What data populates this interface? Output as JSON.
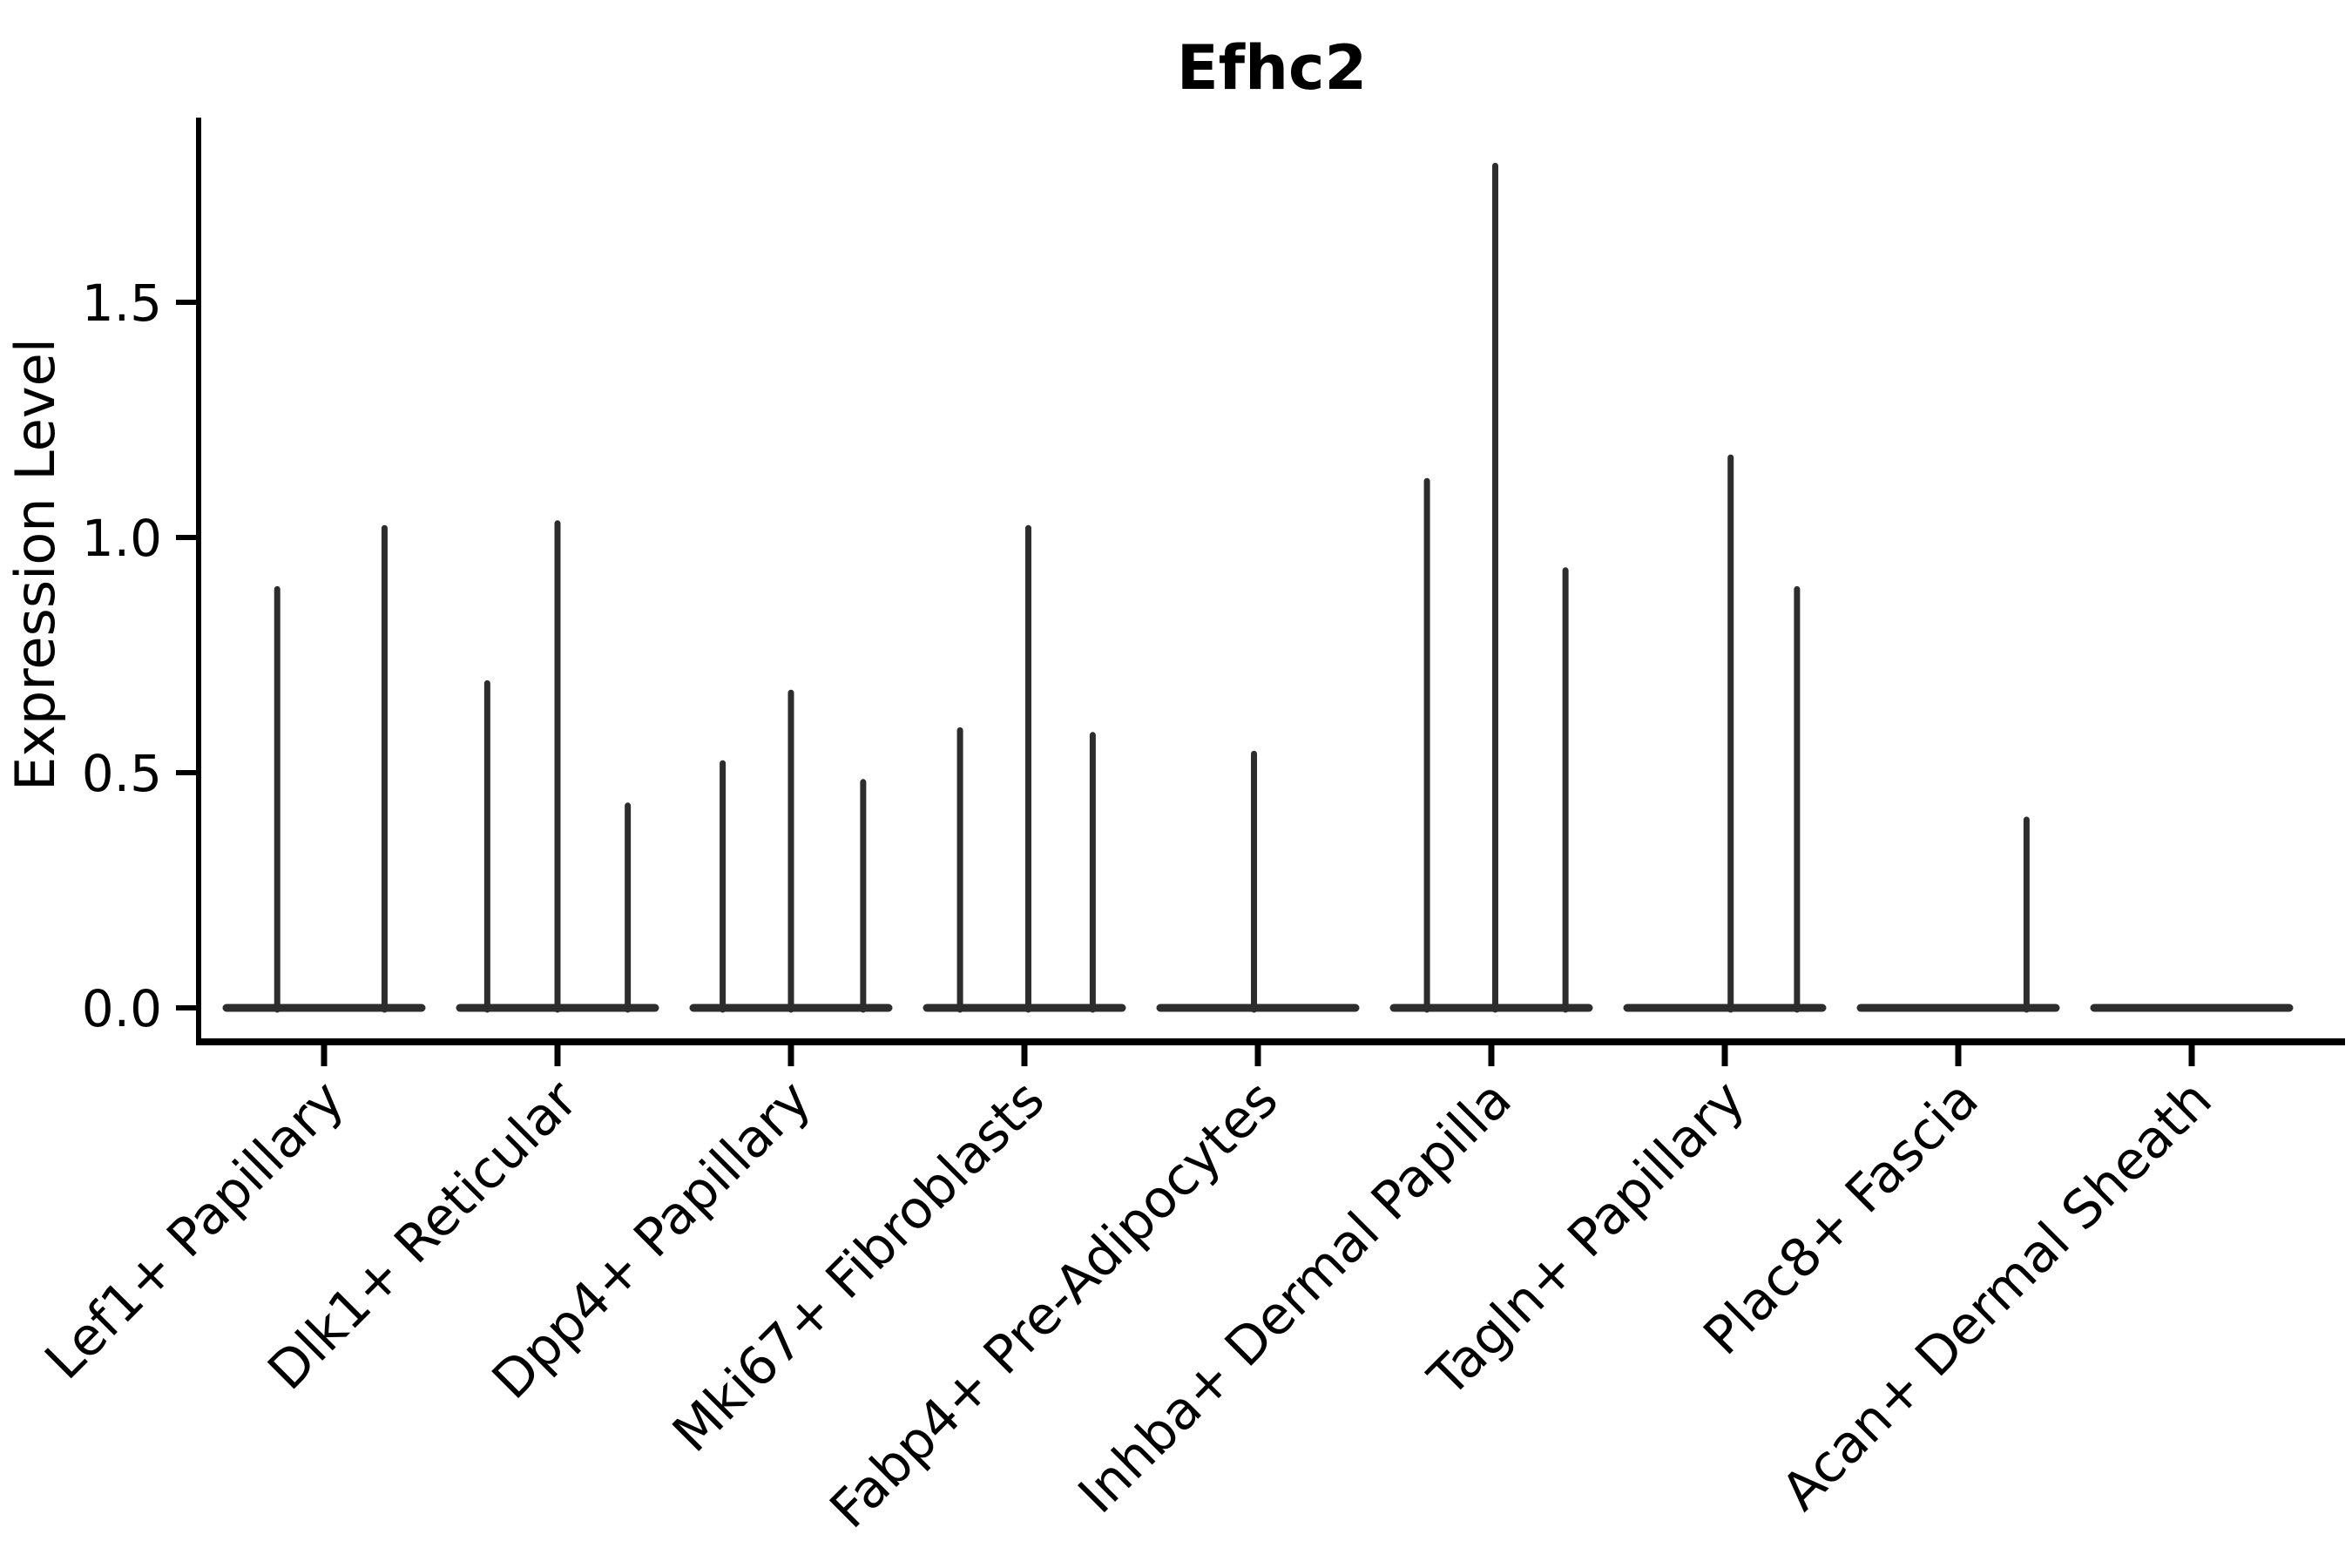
{
  "chart_data": {
    "type": "violin",
    "title": "Efhc2",
    "xlabel": "",
    "ylabel": "Expression Level",
    "categories": [
      "Lef1+ Papillary",
      "Dlk1+ Reticular",
      "Dpp4+ Papillary",
      "Mki67+ Fibroblasts",
      "Fabp4+ Pre-Adipocytes",
      "Inhba+ Dermal Papilla",
      "Tagln+ Papillary",
      "Plac8+ Fascia",
      "Acan+ Dermal Sheath"
    ],
    "yticks": [
      "0.0",
      "0.5",
      "1.0",
      "1.5"
    ],
    "ytick_values": [
      0.0,
      0.5,
      1.0,
      1.5
    ],
    "ylim": [
      -0.08,
      1.9
    ],
    "grid": "off",
    "legend": "none",
    "series": [
      {
        "name": "Lef1+ Papillary",
        "spikes": [
          {
            "x_frac": 0.26,
            "value": 0.89
          },
          {
            "x_frac": 0.81,
            "value": 1.02
          }
        ]
      },
      {
        "name": "Dlk1+ Reticular",
        "spikes": [
          {
            "x_frac": 0.14,
            "value": 0.69
          },
          {
            "x_frac": 0.5,
            "value": 1.03
          },
          {
            "x_frac": 0.86,
            "value": 0.43
          }
        ]
      },
      {
        "name": "Dpp4+ Papillary",
        "spikes": [
          {
            "x_frac": 0.15,
            "value": 0.52
          },
          {
            "x_frac": 0.5,
            "value": 0.67
          },
          {
            "x_frac": 0.87,
            "value": 0.48
          }
        ]
      },
      {
        "name": "Mki67+ Fibroblasts",
        "spikes": [
          {
            "x_frac": 0.17,
            "value": 0.59
          },
          {
            "x_frac": 0.52,
            "value": 1.02
          },
          {
            "x_frac": 0.85,
            "value": 0.58
          }
        ]
      },
      {
        "name": "Fabp4+ Pre-Adipocytes",
        "spikes": [
          {
            "x_frac": 0.48,
            "value": 0.54
          }
        ]
      },
      {
        "name": "Inhba+ Dermal Papilla",
        "spikes": [
          {
            "x_frac": 0.17,
            "value": 1.12
          },
          {
            "x_frac": 0.52,
            "value": 1.79
          },
          {
            "x_frac": 0.88,
            "value": 0.93
          }
        ]
      },
      {
        "name": "Tagln+ Papillary",
        "spikes": [
          {
            "x_frac": 0.53,
            "value": 1.17
          },
          {
            "x_frac": 0.87,
            "value": 0.89
          }
        ]
      },
      {
        "name": "Plac8+ Fascia",
        "spikes": [
          {
            "x_frac": 0.85,
            "value": 0.4
          }
        ]
      },
      {
        "name": "Acan+ Dermal Sheath",
        "spikes": []
      }
    ],
    "colors": {
      "violin": "#2d2d2d",
      "axis": "#000000",
      "text": "#000000",
      "background": "#ffffff"
    }
  }
}
